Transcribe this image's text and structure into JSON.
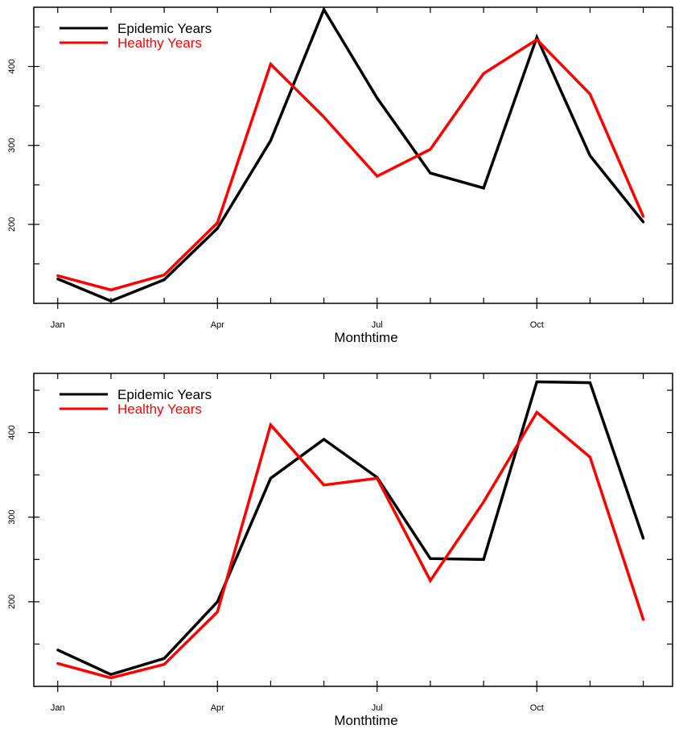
{
  "chart_data": [
    {
      "type": "line",
      "title": "",
      "xlabel": "Monthtime",
      "ylabel": "",
      "x": [
        1,
        2,
        3,
        4,
        5,
        6,
        7,
        8,
        9,
        10,
        11,
        12
      ],
      "x_ticks": [
        {
          "value": 1,
          "label": "Jan"
        },
        {
          "value": 4,
          "label": "Apr"
        },
        {
          "value": 7,
          "label": "Jul"
        },
        {
          "value": 10,
          "label": "Oct"
        }
      ],
      "x_minor_ticks": [
        1,
        2,
        3,
        4,
        5,
        6,
        7,
        8,
        9,
        10,
        11,
        12
      ],
      "xlim": [
        0.55,
        12.55
      ],
      "y_ticks": [
        200,
        300,
        400
      ],
      "y_minor_ticks": [
        150,
        200,
        250,
        300,
        350,
        400,
        450
      ],
      "ylim": [
        100,
        475
      ],
      "grid": false,
      "legend_position": "top-left",
      "series": [
        {
          "name": "Epidemic Years",
          "color": "#000000",
          "values": [
            131,
            103,
            130,
            195,
            306,
            472,
            360,
            265,
            246,
            437,
            287,
            203
          ]
        },
        {
          "name": "Healthy Years",
          "color": "#ff0000",
          "values": [
            135,
            117,
            136,
            202,
            403,
            336,
            261,
            295,
            391,
            434,
            365,
            210
          ]
        }
      ]
    },
    {
      "type": "line",
      "title": "",
      "xlabel": "Monthtime",
      "ylabel": "",
      "x": [
        1,
        2,
        3,
        4,
        5,
        6,
        7,
        8,
        9,
        10,
        11,
        12
      ],
      "x_ticks": [
        {
          "value": 1,
          "label": "Jan"
        },
        {
          "value": 4,
          "label": "Apr"
        },
        {
          "value": 7,
          "label": "Jul"
        },
        {
          "value": 10,
          "label": "Oct"
        }
      ],
      "x_minor_ticks": [
        1,
        2,
        3,
        4,
        5,
        6,
        7,
        8,
        9,
        10,
        11,
        12
      ],
      "xlim": [
        0.55,
        12.55
      ],
      "y_ticks": [
        200,
        300,
        400
      ],
      "y_minor_ticks": [
        150,
        200,
        250,
        300,
        350,
        400,
        450
      ],
      "ylim": [
        100,
        470
      ],
      "grid": false,
      "legend_position": "top-left",
      "series": [
        {
          "name": "Epidemic Years",
          "color": "#000000",
          "values": [
            143,
            114,
            133,
            200,
            346,
            392,
            347,
            251,
            250,
            460,
            459,
            275
          ]
        },
        {
          "name": "Healthy Years",
          "color": "#ff0000",
          "values": [
            127,
            110,
            126,
            188,
            409,
            338,
            346,
            225,
            318,
            424,
            371,
            179
          ]
        }
      ]
    }
  ]
}
